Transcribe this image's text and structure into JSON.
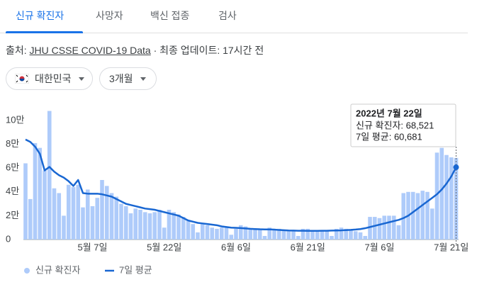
{
  "tabs": [
    "신규 확진자",
    "사망자",
    "백신 접종",
    "검사"
  ],
  "source": {
    "label": "출처:",
    "link": "JHU CSSE COVID-19 Data",
    "updated": "· 최종 업데이트: 17시간 전"
  },
  "filters": [
    "대한민국",
    "3개월"
  ],
  "chart_data": {
    "type": "combo",
    "categories": [
      null,
      null,
      null,
      null,
      null,
      null,
      null,
      null,
      null,
      null,
      null,
      null,
      null,
      null,
      "5월 7일",
      null,
      null,
      null,
      null,
      null,
      null,
      null,
      null,
      null,
      null,
      null,
      null,
      null,
      null,
      "5월 22일",
      null,
      null,
      null,
      null,
      null,
      null,
      null,
      null,
      null,
      null,
      null,
      null,
      null,
      null,
      "6월 6일",
      null,
      null,
      null,
      null,
      null,
      null,
      null,
      null,
      null,
      null,
      null,
      null,
      null,
      null,
      "6월 21일",
      null,
      null,
      null,
      null,
      null,
      null,
      null,
      null,
      null,
      null,
      null,
      null,
      null,
      null,
      "7월 6일",
      null,
      null,
      null,
      null,
      null,
      null,
      null,
      null,
      null,
      null,
      null,
      null,
      null,
      null,
      "7월 21일",
      null
    ],
    "series": [
      {
        "name": "신규 확진자",
        "type": "bar",
        "color": "#aecbfa",
        "values": [
          64000,
          34000,
          81000,
          77000,
          58000,
          108000,
          43000,
          39000,
          20000,
          46000,
          44000,
          46000,
          27000,
          42000,
          28000,
          35000,
          50000,
          45000,
          39000,
          36000,
          30000,
          28000,
          22000,
          26000,
          25000,
          23000,
          22000,
          23000,
          25000,
          10000,
          25000,
          23000,
          21000,
          19000,
          16000,
          13000,
          6000,
          13000,
          12000,
          10000,
          9000,
          10000,
          10000,
          4000,
          9000,
          12000,
          11000,
          9000,
          9000,
          8000,
          3000,
          10000,
          8000,
          9000,
          8000,
          7000,
          7000,
          3000,
          9000,
          9000,
          8000,
          7000,
          7000,
          7000,
          3000,
          9000,
          10000,
          9000,
          8000,
          7000,
          6000,
          3000,
          19000,
          19000,
          18000,
          20000,
          20000,
          20000,
          12000,
          39000,
          40000,
          40000,
          39000,
          41000,
          40000,
          26000,
          73000,
          77000,
          71000,
          69000,
          68521
        ]
      },
      {
        "name": "7일 평균",
        "type": "line",
        "color": "#1967d2",
        "values": [
          84000,
          82000,
          78000,
          72000,
          58000,
          61000,
          57000,
          54000,
          52000,
          49000,
          45000,
          50000,
          39000,
          38500,
          38500,
          38500,
          38000,
          37000,
          36000,
          34000,
          32000,
          30000,
          29000,
          28000,
          27000,
          26000,
          25500,
          25000,
          24000,
          23000,
          22000,
          21000,
          20000,
          18000,
          16000,
          15000,
          14000,
          13500,
          13000,
          12500,
          12000,
          11000,
          10500,
          10000,
          9800,
          9600,
          9300,
          9000,
          8800,
          8600,
          8500,
          8500,
          8300,
          8000,
          7800,
          7600,
          7500,
          7400,
          7400,
          7300,
          7300,
          7300,
          7400,
          7400,
          7500,
          7600,
          7700,
          7900,
          8100,
          8400,
          8800,
          9500,
          10500,
          11500,
          12500,
          13500,
          14500,
          15500,
          16500,
          18000,
          20000,
          23000,
          26000,
          29000,
          32000,
          35000,
          38000,
          42000,
          47000,
          53000,
          60681
        ]
      }
    ],
    "ylim": [
      0,
      110000
    ],
    "yticks": [
      0,
      {
        "value": 20000,
        "label": "2만"
      },
      {
        "value": 40000,
        "label": "4만"
      },
      {
        "value": 60000,
        "label": "6만"
      },
      {
        "value": 80000,
        "label": "8만"
      },
      {
        "value": 100000,
        "label": "10만"
      }
    ],
    "grid": false,
    "tooltip": {
      "title": "2022년 7월 22일",
      "lines": [
        "신규 확진자: 68,521",
        "7일 평균: 60,681"
      ]
    }
  }
}
